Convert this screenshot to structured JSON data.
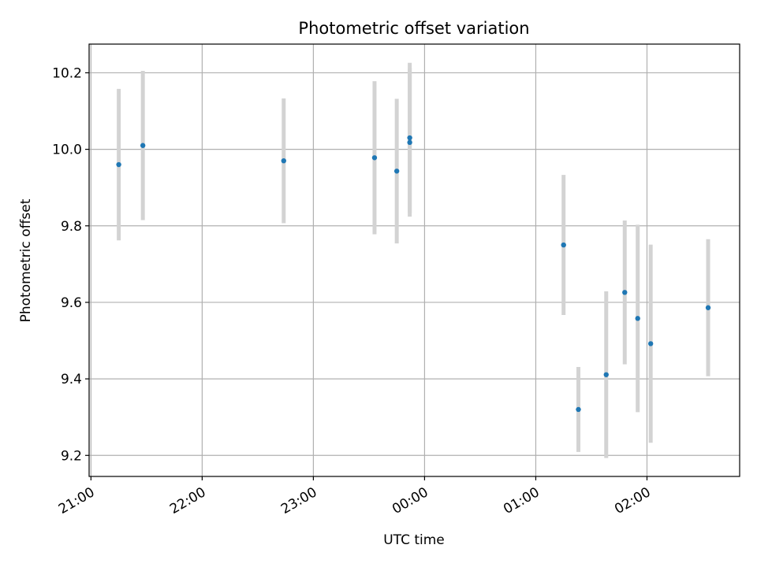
{
  "chart_data": {
    "type": "scatter",
    "title": "Photometric offset variation",
    "xlabel": "UTC time",
    "ylabel": "Photometric offset",
    "x_ticks": [
      "21:00",
      "22:00",
      "23:00",
      "00:00",
      "01:00",
      "02:00"
    ],
    "y_ticks": [
      9.2,
      9.4,
      9.6,
      9.8,
      10.0,
      10.2
    ],
    "xlim_minutes_from_first_tick": [
      -1,
      350
    ],
    "ylim": [
      9.145,
      10.275
    ],
    "grid": true,
    "colors": {
      "point": "#1f77b4",
      "errorbar": "#d3d3d3",
      "grid": "#b0b0b0"
    },
    "points": [
      {
        "t": "21:15",
        "y": 9.96,
        "err": 0.198
      },
      {
        "t": "21:28",
        "y": 10.01,
        "err": 0.195
      },
      {
        "t": "22:44",
        "y": 9.97,
        "err": 0.163
      },
      {
        "t": "23:33",
        "y": 9.978,
        "err": 0.2
      },
      {
        "t": "23:45",
        "y": 9.943,
        "err": 0.189
      },
      {
        "t": "23:52",
        "y": 10.03,
        "err": 0.196
      },
      {
        "t": "23:52",
        "y": 10.018,
        "err": 0.194
      },
      {
        "t": "01:15",
        "y": 9.75,
        "err": 0.183
      },
      {
        "t": "01:23",
        "y": 9.32,
        "err": 0.111
      },
      {
        "t": "01:38",
        "y": 9.411,
        "err": 0.218
      },
      {
        "t": "01:48",
        "y": 9.626,
        "err": 0.188
      },
      {
        "t": "01:55",
        "y": 9.558,
        "err": 0.245
      },
      {
        "t": "02:02",
        "y": 9.492,
        "err": 0.259
      },
      {
        "t": "02:33",
        "y": 9.586,
        "err": 0.179
      }
    ]
  }
}
